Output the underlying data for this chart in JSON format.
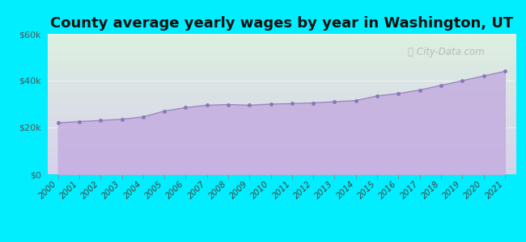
{
  "title": "County average yearly wages by year in Washington, UT",
  "years": [
    2000,
    2001,
    2002,
    2003,
    2004,
    2005,
    2006,
    2007,
    2008,
    2009,
    2010,
    2011,
    2012,
    2013,
    2014,
    2015,
    2016,
    2017,
    2018,
    2019,
    2020,
    2021
  ],
  "wages": [
    22000,
    22500,
    23000,
    23500,
    24500,
    27000,
    28500,
    29500,
    29800,
    29500,
    30000,
    30200,
    30500,
    31000,
    31500,
    33500,
    34500,
    36000,
    38000,
    40000,
    42000,
    44000
  ],
  "ylim": [
    0,
    60000
  ],
  "yticks": [
    0,
    20000,
    40000,
    60000
  ],
  "ytick_labels": [
    "$0",
    "$20k",
    "$40k",
    "$60k"
  ],
  "fill_color_top": "#c8b8e8",
  "fill_color_bottom": "#c0aaee",
  "line_color": "#9b8bbf",
  "marker_color": "#8877bb",
  "marker_size": 3.5,
  "bg_outer": "#00eeff",
  "bg_plot_top": "#e8f5e9",
  "bg_plot_bottom": "#ddd8f0",
  "title_fontsize": 13,
  "tick_fontsize": 8,
  "watermark": "City-Data.com"
}
